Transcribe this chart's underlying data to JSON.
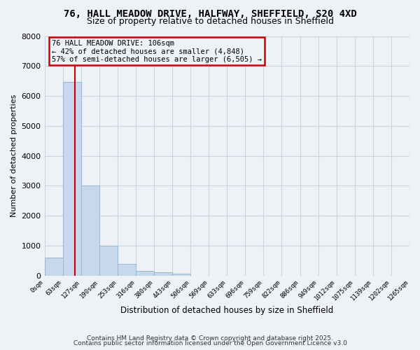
{
  "title": "76, HALL MEADOW DRIVE, HALFWAY, SHEFFIELD, S20 4XD",
  "subtitle": "Size of property relative to detached houses in Sheffield",
  "xlabel": "Distribution of detached houses by size in Sheffield",
  "ylabel": "Number of detached properties",
  "bar_values": [
    600,
    6480,
    3000,
    1000,
    380,
    150,
    100,
    50,
    0,
    0,
    0,
    0,
    0,
    0,
    0,
    0,
    0,
    0,
    0,
    0
  ],
  "bin_labels": [
    "0sqm",
    "63sqm",
    "127sqm",
    "190sqm",
    "253sqm",
    "316sqm",
    "380sqm",
    "443sqm",
    "506sqm",
    "569sqm",
    "633sqm",
    "696sqm",
    "759sqm",
    "822sqm",
    "886sqm",
    "949sqm",
    "1012sqm",
    "1075sqm",
    "1139sqm",
    "1202sqm",
    "1265sqm"
  ],
  "bar_color": "#c8d8ec",
  "bar_edgecolor": "#9ab8d0",
  "grid_color": "#c8d4e0",
  "bg_color": "#eef2f7",
  "vline_x": 106,
  "vline_color": "#cc0000",
  "ylim": [
    0,
    8000
  ],
  "yticks": [
    0,
    1000,
    2000,
    3000,
    4000,
    5000,
    6000,
    7000,
    8000
  ],
  "annotation_title": "76 HALL MEADOW DRIVE: 106sqm",
  "annotation_line1": "← 42% of detached houses are smaller (4,848)",
  "annotation_line2": "57% of semi-detached houses are larger (6,505) →",
  "annotation_box_color": "#cc0000",
  "footer1": "Contains HM Land Registry data © Crown copyright and database right 2025.",
  "footer2": "Contains public sector information licensed under the Open Government Licence v3.0",
  "bin_width": 63
}
